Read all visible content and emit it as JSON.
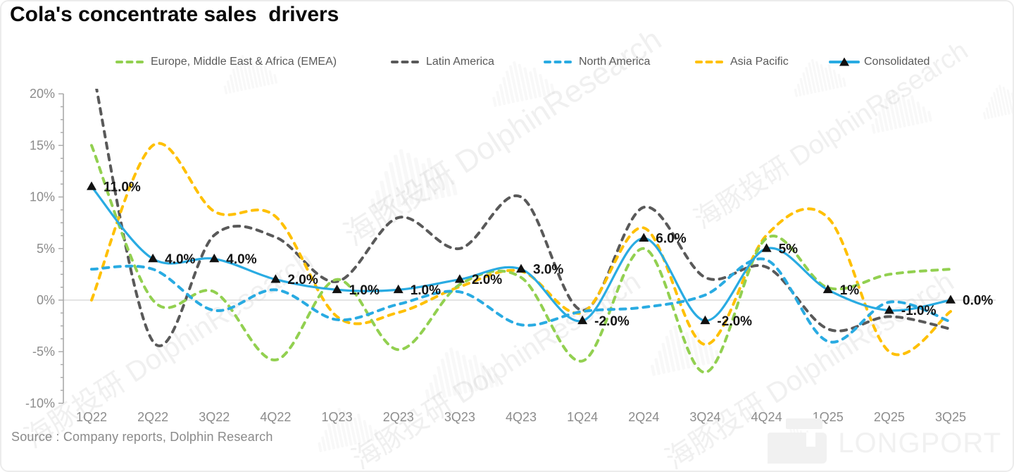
{
  "title": "Cola's concentrate sales  drivers",
  "source": "Source : Company reports, Dolphin Research",
  "watermark": {
    "cn": "海豚投研",
    "en": "DolphinResearch"
  },
  "brand": {
    "name": "LONGPORT"
  },
  "chart_data": {
    "type": "line",
    "title": "Cola's concentrate sales  drivers",
    "xlabel": "",
    "ylabel": "",
    "ylim": [
      -10,
      20
    ],
    "grid": "zero-line-only",
    "legend_position": "top",
    "categories": [
      "1Q22",
      "2Q22",
      "3Q22",
      "4Q22",
      "1Q23",
      "2Q23",
      "3Q23",
      "4Q23",
      "1Q24",
      "2Q24",
      "3Q24",
      "4Q24",
      "1Q25",
      "2Q25",
      "3Q25"
    ],
    "y_ticks": [
      {
        "label": "20%",
        "value": 20
      },
      {
        "label": "15%",
        "value": 15
      },
      {
        "label": "10%",
        "value": 10
      },
      {
        "label": "5%",
        "value": 5
      },
      {
        "label": "0%",
        "value": 0
      },
      {
        "label": "-5%",
        "value": -5
      },
      {
        "label": "-10%",
        "value": -10
      }
    ],
    "series": [
      {
        "name": "Europe, Middle East & Africa (EMEA)",
        "color": "#92D050",
        "style": "dashed",
        "values": [
          15,
          0,
          0.8,
          -5.8,
          2,
          -4.8,
          1.5,
          2.2,
          -5.9,
          5,
          -7,
          6,
          1.2,
          2.5,
          3
        ]
      },
      {
        "name": "Latin America",
        "color": "#595959",
        "style": "dashed",
        "values": [
          23,
          -4,
          6.3,
          6.1,
          1.8,
          8,
          5,
          10,
          -1,
          9,
          2.2,
          3.2,
          -2.8,
          -1.6,
          -2.8
        ]
      },
      {
        "name": "North America",
        "color": "#29ABE2",
        "style": "dashed",
        "values": [
          3,
          3,
          -1,
          1,
          -1.9,
          -0.4,
          0.8,
          -2.4,
          -1.1,
          -0.7,
          0.5,
          3.9,
          -4,
          -0.2,
          -2.1
        ]
      },
      {
        "name": "Asia Pacific",
        "color": "#FFC000",
        "style": "dashed",
        "values": [
          0,
          15,
          8.6,
          8.1,
          -1.6,
          -1.2,
          1.3,
          2.8,
          -1.2,
          7,
          -4.3,
          6.3,
          8,
          -5,
          -1.1
        ]
      },
      {
        "name": "Consolidated",
        "color": "#29ABE2",
        "style": "solid",
        "marker": "triangle",
        "marker_color": "#111111",
        "values": [
          11,
          4,
          4,
          2,
          1,
          1,
          2,
          3,
          -2,
          6,
          -2,
          5,
          1,
          -1,
          0
        ],
        "labels": [
          "11.0%",
          "4.0%",
          "4.0%",
          "2.0%",
          "1.0%",
          "1.0%",
          "2.0%",
          "3.0%",
          "-2.0%",
          "6.0%",
          "-2.0%",
          "5%",
          "1%",
          "-1.0%",
          "0.0%"
        ]
      }
    ]
  }
}
